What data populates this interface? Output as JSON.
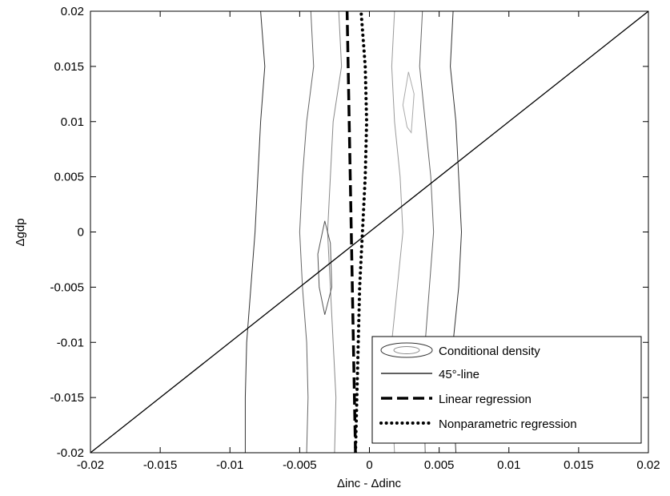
{
  "chart_data": {
    "type": "line",
    "xlabel": "Δinc - Δdinc",
    "ylabel": "Δgdp",
    "xlim": [
      -0.02,
      0.02
    ],
    "ylim": [
      -0.02,
      0.02
    ],
    "x_ticks": [
      -0.02,
      -0.015,
      -0.01,
      -0.005,
      0,
      0.005,
      0.01,
      0.015,
      0.02
    ],
    "x_tick_labels": [
      "-0.02",
      "-0.015",
      "-0.01",
      "-0.005",
      "0",
      "0.005",
      "0.01",
      "0.015",
      "0.02"
    ],
    "y_ticks": [
      -0.02,
      -0.015,
      -0.01,
      -0.005,
      0,
      0.005,
      0.01,
      0.015,
      0.02
    ],
    "y_tick_labels": [
      "-0.02",
      "-0.015",
      "-0.01",
      "-0.005",
      "0",
      "0.005",
      "0.01",
      "0.015",
      "0.02"
    ],
    "grid": false,
    "legend_position": "bottom-right",
    "legend": [
      {
        "label": "Conditional density",
        "style": "contour"
      },
      {
        "label": "45°-line",
        "style": "solid"
      },
      {
        "label": "Linear regression",
        "style": "dashed"
      },
      {
        "label": "Nonparametric regression",
        "style": "dotted"
      }
    ],
    "series": [
      {
        "name": "45°-line",
        "style": "solid",
        "color": "#000000",
        "points": [
          [
            -0.02,
            -0.02
          ],
          [
            0.02,
            0.02
          ]
        ]
      },
      {
        "name": "Linear regression",
        "style": "dashed",
        "color": "#000000",
        "points": [
          [
            -0.001,
            -0.02
          ],
          [
            -0.0016,
            0.02
          ]
        ]
      },
      {
        "name": "Nonparametric regression",
        "style": "dotted",
        "color": "#000000",
        "points": [
          [
            -0.001,
            -0.02
          ],
          [
            -0.0009,
            -0.015
          ],
          [
            -0.0008,
            -0.01
          ],
          [
            -0.0007,
            -0.005
          ],
          [
            -0.0005,
            0
          ],
          [
            -0.0003,
            0.005
          ],
          [
            -0.0002,
            0.01
          ],
          [
            -0.0003,
            0.015
          ],
          [
            -0.0006,
            0.02
          ]
        ]
      }
    ],
    "contours": [
      {
        "color": "#333333",
        "points": [
          [
            -0.0078,
            0.02
          ],
          [
            -0.0075,
            0.015
          ],
          [
            -0.0078,
            0.01
          ],
          [
            -0.008,
            0.005
          ],
          [
            -0.0082,
            0
          ],
          [
            -0.0085,
            -0.005
          ],
          [
            -0.0088,
            -0.01
          ],
          [
            -0.0089,
            -0.015
          ],
          [
            -0.0089,
            -0.02
          ]
        ]
      },
      {
        "color": "#333333",
        "points": [
          [
            0.006,
            0.02
          ],
          [
            0.0058,
            0.015
          ],
          [
            0.0062,
            0.01
          ],
          [
            0.0064,
            0.005
          ],
          [
            0.0066,
            0
          ],
          [
            0.0064,
            -0.005
          ],
          [
            0.006,
            -0.01
          ],
          [
            0.006,
            -0.015
          ],
          [
            0.0062,
            -0.02
          ]
        ]
      },
      {
        "color": "#666666",
        "points": [
          [
            -0.0042,
            0.02
          ],
          [
            -0.004,
            0.015
          ],
          [
            -0.0045,
            0.01
          ],
          [
            -0.0048,
            0.005
          ],
          [
            -0.005,
            0
          ],
          [
            -0.0048,
            -0.005
          ],
          [
            -0.0045,
            -0.01
          ],
          [
            -0.0044,
            -0.015
          ],
          [
            -0.0045,
            -0.02
          ]
        ]
      },
      {
        "color": "#666666",
        "points": [
          [
            0.0038,
            0.02
          ],
          [
            0.0036,
            0.015
          ],
          [
            0.004,
            0.01
          ],
          [
            0.0044,
            0.005
          ],
          [
            0.0046,
            0
          ],
          [
            0.0043,
            -0.005
          ],
          [
            0.004,
            -0.01
          ],
          [
            0.0039,
            -0.015
          ],
          [
            0.004,
            -0.02
          ]
        ]
      },
      {
        "color": "#888888",
        "points": [
          [
            -0.0022,
            0.02
          ],
          [
            -0.002,
            0.015
          ],
          [
            -0.0026,
            0.01
          ],
          [
            -0.0028,
            0.005
          ],
          [
            -0.003,
            0
          ],
          [
            -0.0028,
            -0.005
          ],
          [
            -0.0026,
            -0.01
          ],
          [
            -0.0024,
            -0.015
          ],
          [
            -0.0025,
            -0.02
          ]
        ]
      },
      {
        "color": "#999999",
        "points": [
          [
            0.0018,
            0.02
          ],
          [
            0.0016,
            0.015
          ],
          [
            0.0018,
            0.01
          ],
          [
            0.0022,
            0.005
          ],
          [
            0.0024,
            0
          ],
          [
            0.002,
            -0.005
          ],
          [
            0.0016,
            -0.01
          ],
          [
            0.0016,
            -0.015
          ],
          [
            0.0018,
            -0.02
          ]
        ]
      },
      {
        "color": "#555555",
        "closed": true,
        "points": [
          [
            -0.0032,
            -0.0075
          ],
          [
            -0.0036,
            -0.005
          ],
          [
            -0.0037,
            -0.002
          ],
          [
            -0.0032,
            0.001
          ],
          [
            -0.0028,
            -0.001
          ],
          [
            -0.0027,
            -0.005
          ]
        ]
      },
      {
        "color": "#aaaaaa",
        "closed": true,
        "points": [
          [
            0.0027,
            0.0095
          ],
          [
            0.0024,
            0.0115
          ],
          [
            0.0028,
            0.0145
          ],
          [
            0.0032,
            0.0125
          ],
          [
            0.003,
            0.009
          ]
        ]
      }
    ]
  }
}
